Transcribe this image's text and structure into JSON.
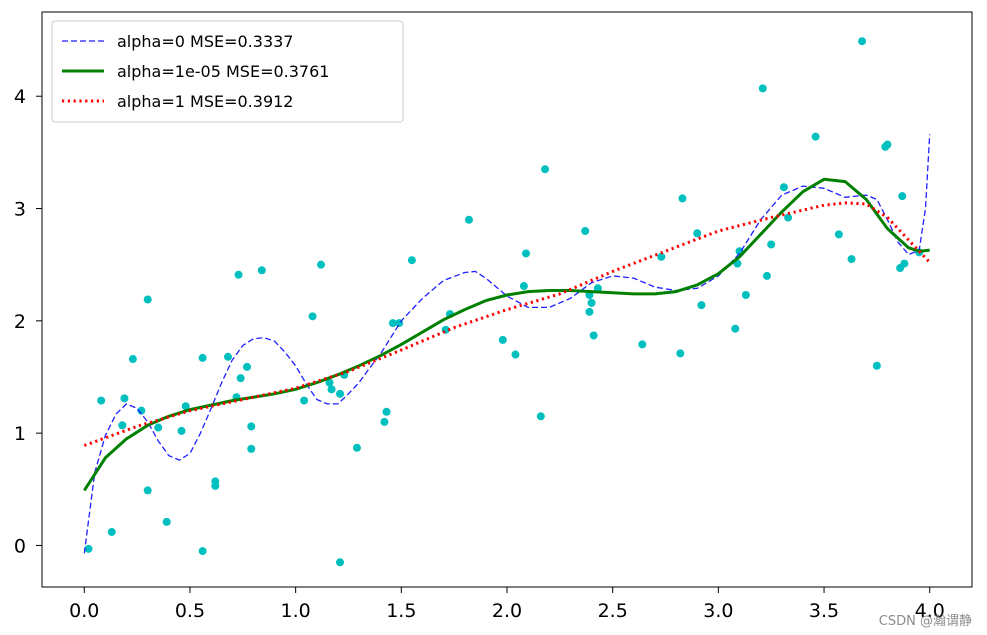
{
  "chart_data": {
    "type": "line",
    "title": "",
    "xlabel": "",
    "ylabel": "",
    "xlim": [
      -0.2,
      4.2
    ],
    "ylim": [
      -0.37,
      4.75
    ],
    "grid": false,
    "legend_position": "top-left",
    "x_ticks": [
      0.0,
      0.5,
      1.0,
      1.5,
      2.0,
      2.5,
      3.0,
      3.5,
      4.0
    ],
    "x_tick_labels": [
      "0.0",
      "0.5",
      "1.0",
      "1.5",
      "2.0",
      "2.5",
      "3.0",
      "3.5",
      "4.0"
    ],
    "y_ticks": [
      0,
      1,
      2,
      3,
      4
    ],
    "y_tick_labels": [
      "0",
      "1",
      "2",
      "3",
      "4"
    ],
    "scatter": {
      "color": "#00bfbf",
      "points": [
        [
          0.02,
          -0.03
        ],
        [
          0.08,
          1.29
        ],
        [
          0.13,
          0.12
        ],
        [
          0.18,
          1.07
        ],
        [
          0.19,
          1.31
        ],
        [
          0.23,
          1.66
        ],
        [
          0.27,
          1.2
        ],
        [
          0.3,
          2.19
        ],
        [
          0.3,
          0.49
        ],
        [
          0.35,
          1.05
        ],
        [
          0.39,
          0.21
        ],
        [
          0.46,
          1.02
        ],
        [
          0.48,
          1.24
        ],
        [
          0.56,
          1.67
        ],
        [
          0.56,
          -0.05
        ],
        [
          0.62,
          0.57
        ],
        [
          0.62,
          0.53
        ],
        [
          0.68,
          1.68
        ],
        [
          0.72,
          1.32
        ],
        [
          0.73,
          2.41
        ],
        [
          0.74,
          1.49
        ],
        [
          0.77,
          1.59
        ],
        [
          0.79,
          1.06
        ],
        [
          0.79,
          0.86
        ],
        [
          0.84,
          2.45
        ],
        [
          1.04,
          1.29
        ],
        [
          1.08,
          2.04
        ],
        [
          1.12,
          2.5
        ],
        [
          1.16,
          1.45
        ],
        [
          1.17,
          1.39
        ],
        [
          1.21,
          1.35
        ],
        [
          1.21,
          -0.15
        ],
        [
          1.23,
          1.52
        ],
        [
          1.29,
          0.87
        ],
        [
          1.42,
          1.1
        ],
        [
          1.43,
          1.19
        ],
        [
          1.46,
          1.98
        ],
        [
          1.49,
          1.98
        ],
        [
          1.55,
          2.54
        ],
        [
          1.71,
          1.92
        ],
        [
          1.73,
          2.06
        ],
        [
          1.82,
          2.9
        ],
        [
          1.98,
          1.83
        ],
        [
          2.04,
          1.7
        ],
        [
          2.08,
          2.31
        ],
        [
          2.09,
          2.6
        ],
        [
          2.16,
          1.15
        ],
        [
          2.18,
          3.35
        ],
        [
          2.37,
          2.8
        ],
        [
          2.39,
          2.08
        ],
        [
          2.39,
          2.23
        ],
        [
          2.4,
          2.16
        ],
        [
          2.41,
          1.87
        ],
        [
          2.43,
          2.29
        ],
        [
          2.64,
          1.79
        ],
        [
          2.73,
          2.57
        ],
        [
          2.82,
          1.71
        ],
        [
          2.83,
          3.09
        ],
        [
          2.9,
          2.78
        ],
        [
          2.92,
          2.14
        ],
        [
          3.08,
          1.93
        ],
        [
          3.09,
          2.51
        ],
        [
          3.1,
          2.62
        ],
        [
          3.13,
          2.23
        ],
        [
          3.21,
          4.07
        ],
        [
          3.23,
          2.4
        ],
        [
          3.25,
          2.68
        ],
        [
          3.31,
          3.19
        ],
        [
          3.33,
          2.92
        ],
        [
          3.46,
          3.64
        ],
        [
          3.57,
          2.77
        ],
        [
          3.63,
          2.55
        ],
        [
          3.68,
          4.49
        ],
        [
          3.75,
          1.6
        ],
        [
          3.79,
          3.55
        ],
        [
          3.8,
          3.57
        ],
        [
          3.86,
          2.47
        ],
        [
          3.87,
          3.11
        ],
        [
          3.88,
          2.51
        ],
        [
          3.95,
          2.61
        ]
      ]
    },
    "series": [
      {
        "name": "alpha=0 MSE=0.3337",
        "color": "#1f1fff",
        "style": "dashed",
        "x": [
          0.0,
          0.05,
          0.1,
          0.15,
          0.2,
          0.25,
          0.3,
          0.35,
          0.4,
          0.45,
          0.5,
          0.55,
          0.6,
          0.65,
          0.7,
          0.75,
          0.8,
          0.85,
          0.9,
          0.95,
          1.0,
          1.05,
          1.1,
          1.15,
          1.2,
          1.25,
          1.3,
          1.35,
          1.4,
          1.45,
          1.5,
          1.6,
          1.7,
          1.8,
          1.85,
          1.9,
          2.0,
          2.1,
          2.2,
          2.3,
          2.4,
          2.5,
          2.6,
          2.7,
          2.8,
          2.9,
          3.0,
          3.1,
          3.2,
          3.3,
          3.4,
          3.5,
          3.6,
          3.7,
          3.75,
          3.8,
          3.85,
          3.9,
          3.95,
          3.98,
          4.0
        ],
        "y": [
          -0.07,
          0.65,
          0.98,
          1.17,
          1.26,
          1.22,
          1.1,
          0.93,
          0.8,
          0.76,
          0.82,
          1.0,
          1.22,
          1.45,
          1.65,
          1.78,
          1.84,
          1.85,
          1.82,
          1.72,
          1.6,
          1.44,
          1.3,
          1.26,
          1.26,
          1.35,
          1.45,
          1.58,
          1.7,
          1.85,
          2.0,
          2.2,
          2.36,
          2.43,
          2.44,
          2.38,
          2.22,
          2.12,
          2.12,
          2.2,
          2.34,
          2.4,
          2.38,
          2.3,
          2.27,
          2.29,
          2.4,
          2.6,
          2.9,
          3.12,
          3.2,
          3.18,
          3.1,
          3.12,
          3.08,
          2.9,
          2.7,
          2.59,
          2.63,
          3.0,
          3.66
        ]
      },
      {
        "name": "alpha=1e-05 MSE=0.3761",
        "color": "#008000",
        "style": "solid",
        "x": [
          0.0,
          0.1,
          0.2,
          0.3,
          0.4,
          0.5,
          0.6,
          0.7,
          0.8,
          0.9,
          1.0,
          1.1,
          1.2,
          1.3,
          1.4,
          1.5,
          1.6,
          1.7,
          1.8,
          1.9,
          2.0,
          2.1,
          2.2,
          2.3,
          2.4,
          2.5,
          2.6,
          2.7,
          2.8,
          2.9,
          3.0,
          3.1,
          3.2,
          3.3,
          3.4,
          3.5,
          3.6,
          3.7,
          3.8,
          3.9,
          3.95,
          4.0
        ],
        "y": [
          0.49,
          0.78,
          0.95,
          1.07,
          1.15,
          1.21,
          1.25,
          1.29,
          1.32,
          1.35,
          1.39,
          1.45,
          1.52,
          1.6,
          1.69,
          1.79,
          1.9,
          2.01,
          2.1,
          2.18,
          2.23,
          2.26,
          2.27,
          2.27,
          2.26,
          2.25,
          2.24,
          2.24,
          2.26,
          2.32,
          2.42,
          2.57,
          2.77,
          2.97,
          3.15,
          3.26,
          3.24,
          3.08,
          2.82,
          2.65,
          2.62,
          2.63
        ]
      },
      {
        "name": "alpha=1 MSE=0.3912",
        "color": "#ff0000",
        "style": "dotted",
        "x": [
          0.0,
          0.25,
          0.5,
          0.75,
          1.0,
          1.25,
          1.5,
          1.75,
          2.0,
          2.25,
          2.5,
          2.75,
          3.0,
          3.25,
          3.5,
          3.6,
          3.7,
          3.8,
          3.9,
          4.0
        ],
        "y": [
          0.89,
          1.06,
          1.2,
          1.3,
          1.4,
          1.55,
          1.74,
          1.94,
          2.1,
          2.24,
          2.44,
          2.62,
          2.8,
          2.92,
          3.03,
          3.05,
          3.04,
          2.92,
          2.72,
          2.52
        ]
      }
    ]
  },
  "watermark": "CSDN @瀚谓静"
}
